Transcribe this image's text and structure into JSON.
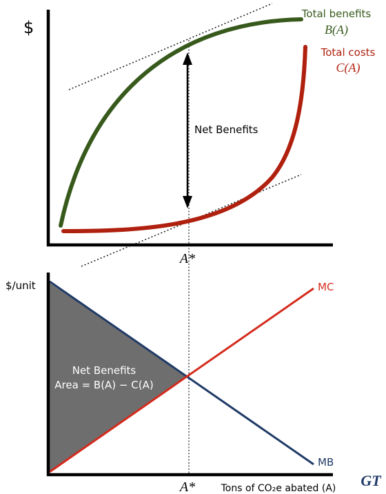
{
  "top_panel": {
    "y_axis_label": "$",
    "total_benefits": {
      "name": "Total benefits",
      "symbol": "B(A)",
      "color": "#375a1c"
    },
    "total_costs": {
      "name": "Total costs",
      "symbol": "C(A)",
      "color": "#b0200e"
    },
    "net_benefits_label": "Net Benefits",
    "optimum_label": "A*"
  },
  "bottom_panel": {
    "y_axis_label": "$/unit",
    "mc_label": "MC",
    "mb_label": "MB",
    "mc_color": "#d42a1c",
    "mb_color": "#1f3a66",
    "shaded_color": "#6e6e6e",
    "area_title": "Net Benefits",
    "area_formula": "Area = B(A) − C(A)",
    "optimum_label": "A*",
    "x_axis_label": "Tons of CO₂e abated (A)"
  },
  "logo": {
    "text": "GT",
    "color": "#1f3a66"
  }
}
